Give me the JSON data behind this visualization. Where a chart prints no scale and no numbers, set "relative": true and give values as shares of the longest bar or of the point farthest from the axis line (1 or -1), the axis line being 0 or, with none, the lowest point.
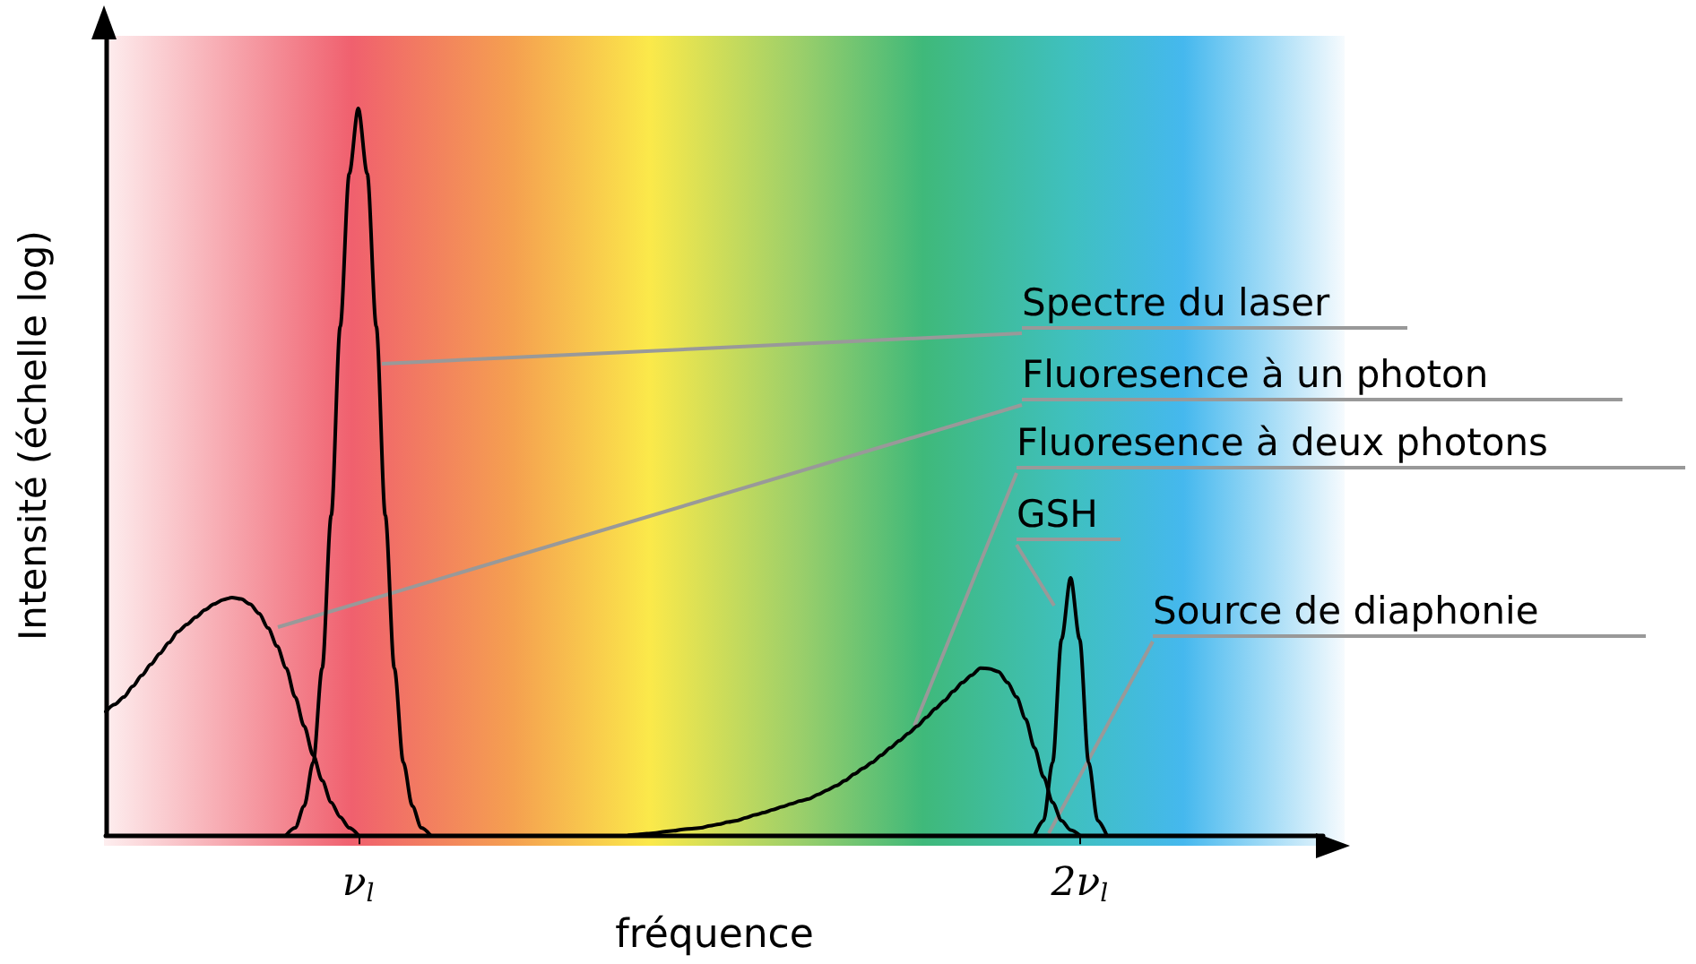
{
  "chart_data": {
    "type": "line",
    "relative": true,
    "xlabel": "fréquence",
    "ylabel": "Intensité (échelle log)",
    "categories": [
      null,
      null,
      null,
      null,
      null,
      null,
      null,
      null,
      null,
      null,
      null,
      null,
      null,
      null,
      null,
      null,
      null,
      null,
      null,
      null,
      null,
      null,
      null,
      null,
      null,
      null,
      null,
      null,
      "ν$_{l}$",
      null,
      null,
      null,
      null,
      null,
      null,
      null,
      null,
      null,
      null,
      null,
      null,
      null,
      null,
      null,
      null,
      null,
      null,
      null,
      null,
      null,
      null,
      null,
      null,
      null,
      null,
      null,
      null,
      null,
      null,
      null,
      null,
      null,
      null,
      null,
      null,
      null,
      null,
      null,
      null,
      null,
      null,
      null,
      null,
      null,
      null,
      null,
      null,
      null,
      null,
      null,
      null,
      null,
      null,
      null,
      null,
      null,
      null,
      null,
      null,
      null,
      null,
      null,
      null,
      null,
      null,
      null,
      null,
      null,
      null,
      null,
      null,
      null,
      null,
      null,
      null,
      null,
      null,
      null,
      "2ν$_{l}$",
      null,
      null,
      null,
      null,
      null,
      null,
      null,
      null,
      null,
      null,
      null,
      null,
      null,
      null,
      null,
      null,
      null,
      null,
      null,
      null,
      null,
      null,
      null,
      null,
      null,
      null,
      null
    ],
    "grid": false,
    "marker": "none",
    "line_style": "solid",
    "series": [
      {
        "color": "#000000",
        "values": [
          null,
          null,
          null,
          null,
          null,
          null,
          null,
          null,
          null,
          null,
          null,
          null,
          null,
          null,
          null,
          null,
          null,
          null,
          null,
          null,
          0,
          0.01,
          0.04,
          0.1,
          0.23,
          0.44,
          0.7,
          0.91,
          1,
          0.91,
          0.7,
          0.44,
          0.23,
          0.1,
          0.04,
          0.01,
          0,
          null,
          null,
          null,
          null,
          null,
          null,
          null,
          null,
          null,
          null,
          null,
          null,
          null,
          null,
          null,
          null,
          null,
          null,
          null,
          null,
          null,
          null,
          null,
          null,
          null,
          null,
          null,
          null,
          null,
          null,
          null,
          null,
          null,
          null,
          null,
          null,
          null,
          null,
          null,
          null,
          null,
          null,
          null,
          null,
          null,
          null,
          null,
          null,
          null,
          null,
          null,
          null,
          null,
          null,
          null,
          null,
          null,
          null,
          null,
          null,
          null,
          null,
          null,
          null,
          null,
          null,
          null,
          null,
          null,
          null,
          null,
          null,
          null,
          null,
          null,
          null,
          null,
          null,
          null,
          null,
          null,
          null,
          null,
          null,
          null,
          null,
          null,
          null,
          null,
          null,
          null,
          null,
          null,
          null,
          null,
          null,
          null,
          null,
          null
        ]
      },
      {
        "color": "#000000",
        "values": [
          0.17,
          0.18,
          0.19,
          0.205,
          0.22,
          0.235,
          0.25,
          0.265,
          0.28,
          0.29,
          0.3,
          0.31,
          0.318,
          0.324,
          0.327,
          0.325,
          0.318,
          0.305,
          0.285,
          0.26,
          0.23,
          0.19,
          0.15,
          0.11,
          0.075,
          0.045,
          0.025,
          0.01,
          0,
          null,
          null,
          null,
          null,
          null,
          null,
          null,
          null,
          null,
          null,
          null,
          null,
          null,
          null,
          null,
          null,
          null,
          null,
          null,
          null,
          null,
          null,
          null,
          null,
          null,
          null,
          null,
          null,
          null,
          null,
          null,
          null,
          null,
          null,
          null,
          null,
          null,
          null,
          null,
          null,
          null,
          null,
          null,
          null,
          null,
          null,
          null,
          null,
          null,
          null,
          null,
          null,
          null,
          null,
          null,
          null,
          null,
          null,
          null,
          null,
          null,
          null,
          null,
          null,
          null,
          null,
          null,
          null,
          null,
          null,
          null,
          null,
          null,
          null,
          null,
          null,
          null,
          null,
          null,
          null,
          null,
          null,
          null,
          null,
          null,
          null,
          null,
          null,
          null,
          null,
          null,
          null,
          null,
          null,
          null,
          null,
          null,
          null,
          null,
          null,
          null,
          null,
          null,
          null,
          null,
          null,
          null
        ]
      },
      {
        "color": "#000000",
        "values": [
          null,
          null,
          null,
          null,
          null,
          null,
          null,
          null,
          null,
          null,
          null,
          null,
          null,
          null,
          null,
          null,
          null,
          null,
          null,
          null,
          null,
          null,
          null,
          null,
          null,
          null,
          null,
          null,
          null,
          null,
          null,
          null,
          null,
          null,
          null,
          null,
          null,
          null,
          null,
          null,
          null,
          null,
          null,
          null,
          null,
          null,
          null,
          null,
          null,
          null,
          null,
          null,
          null,
          null,
          null,
          null,
          null,
          null,
          0,
          0.001,
          0.002,
          0.003,
          0.005,
          0.006,
          0.008,
          0.009,
          0.01,
          0.013,
          0.015,
          0.018,
          0.02,
          0.024,
          0.028,
          0.031,
          0.035,
          0.039,
          0.043,
          0.047,
          0.05,
          0.056,
          0.062,
          0.068,
          0.075,
          0.084,
          0.092,
          0.1,
          0.11,
          0.12,
          0.13,
          0.14,
          0.15,
          0.162,
          0.174,
          0.185,
          0.198,
          0.21,
          0.22,
          0.23,
          0.229,
          0.225,
          0.21,
          0.19,
          0.16,
          0.12,
          0.08,
          0.045,
          0.02,
          0.007,
          0,
          null,
          null,
          null,
          null,
          null,
          null,
          null,
          null,
          null,
          null,
          null,
          null,
          null,
          null,
          null,
          null,
          null,
          null,
          null,
          null,
          null,
          null,
          null,
          null,
          null,
          null,
          null
        ]
      },
      {
        "color": "#000000",
        "values": [
          null,
          null,
          null,
          null,
          null,
          null,
          null,
          null,
          null,
          null,
          null,
          null,
          null,
          null,
          null,
          null,
          null,
          null,
          null,
          null,
          null,
          null,
          null,
          null,
          null,
          null,
          null,
          null,
          null,
          null,
          null,
          null,
          null,
          null,
          null,
          null,
          null,
          null,
          null,
          null,
          null,
          null,
          null,
          null,
          null,
          null,
          null,
          null,
          null,
          null,
          null,
          null,
          null,
          null,
          null,
          null,
          null,
          null,
          null,
          null,
          null,
          null,
          null,
          null,
          null,
          null,
          null,
          null,
          null,
          null,
          null,
          null,
          null,
          null,
          null,
          null,
          null,
          null,
          null,
          null,
          null,
          null,
          null,
          null,
          null,
          null,
          null,
          null,
          null,
          null,
          null,
          null,
          null,
          null,
          null,
          null,
          null,
          null,
          null,
          null,
          null,
          null,
          null,
          0,
          0.02,
          0.1,
          0.27,
          0.354,
          0.27,
          0.1,
          0.02,
          0,
          null,
          null,
          null,
          null,
          null,
          null,
          null,
          null,
          null,
          null,
          null,
          null,
          null,
          null,
          null,
          null,
          null,
          null,
          null,
          null,
          null,
          null,
          null,
          null
        ]
      }
    ],
    "annotations": [
      "Spectre du laser",
      "Fluoresence à un photon",
      "Fluoresence à deux photons",
      "GSH",
      "Source de diaphonie"
    ]
  }
}
